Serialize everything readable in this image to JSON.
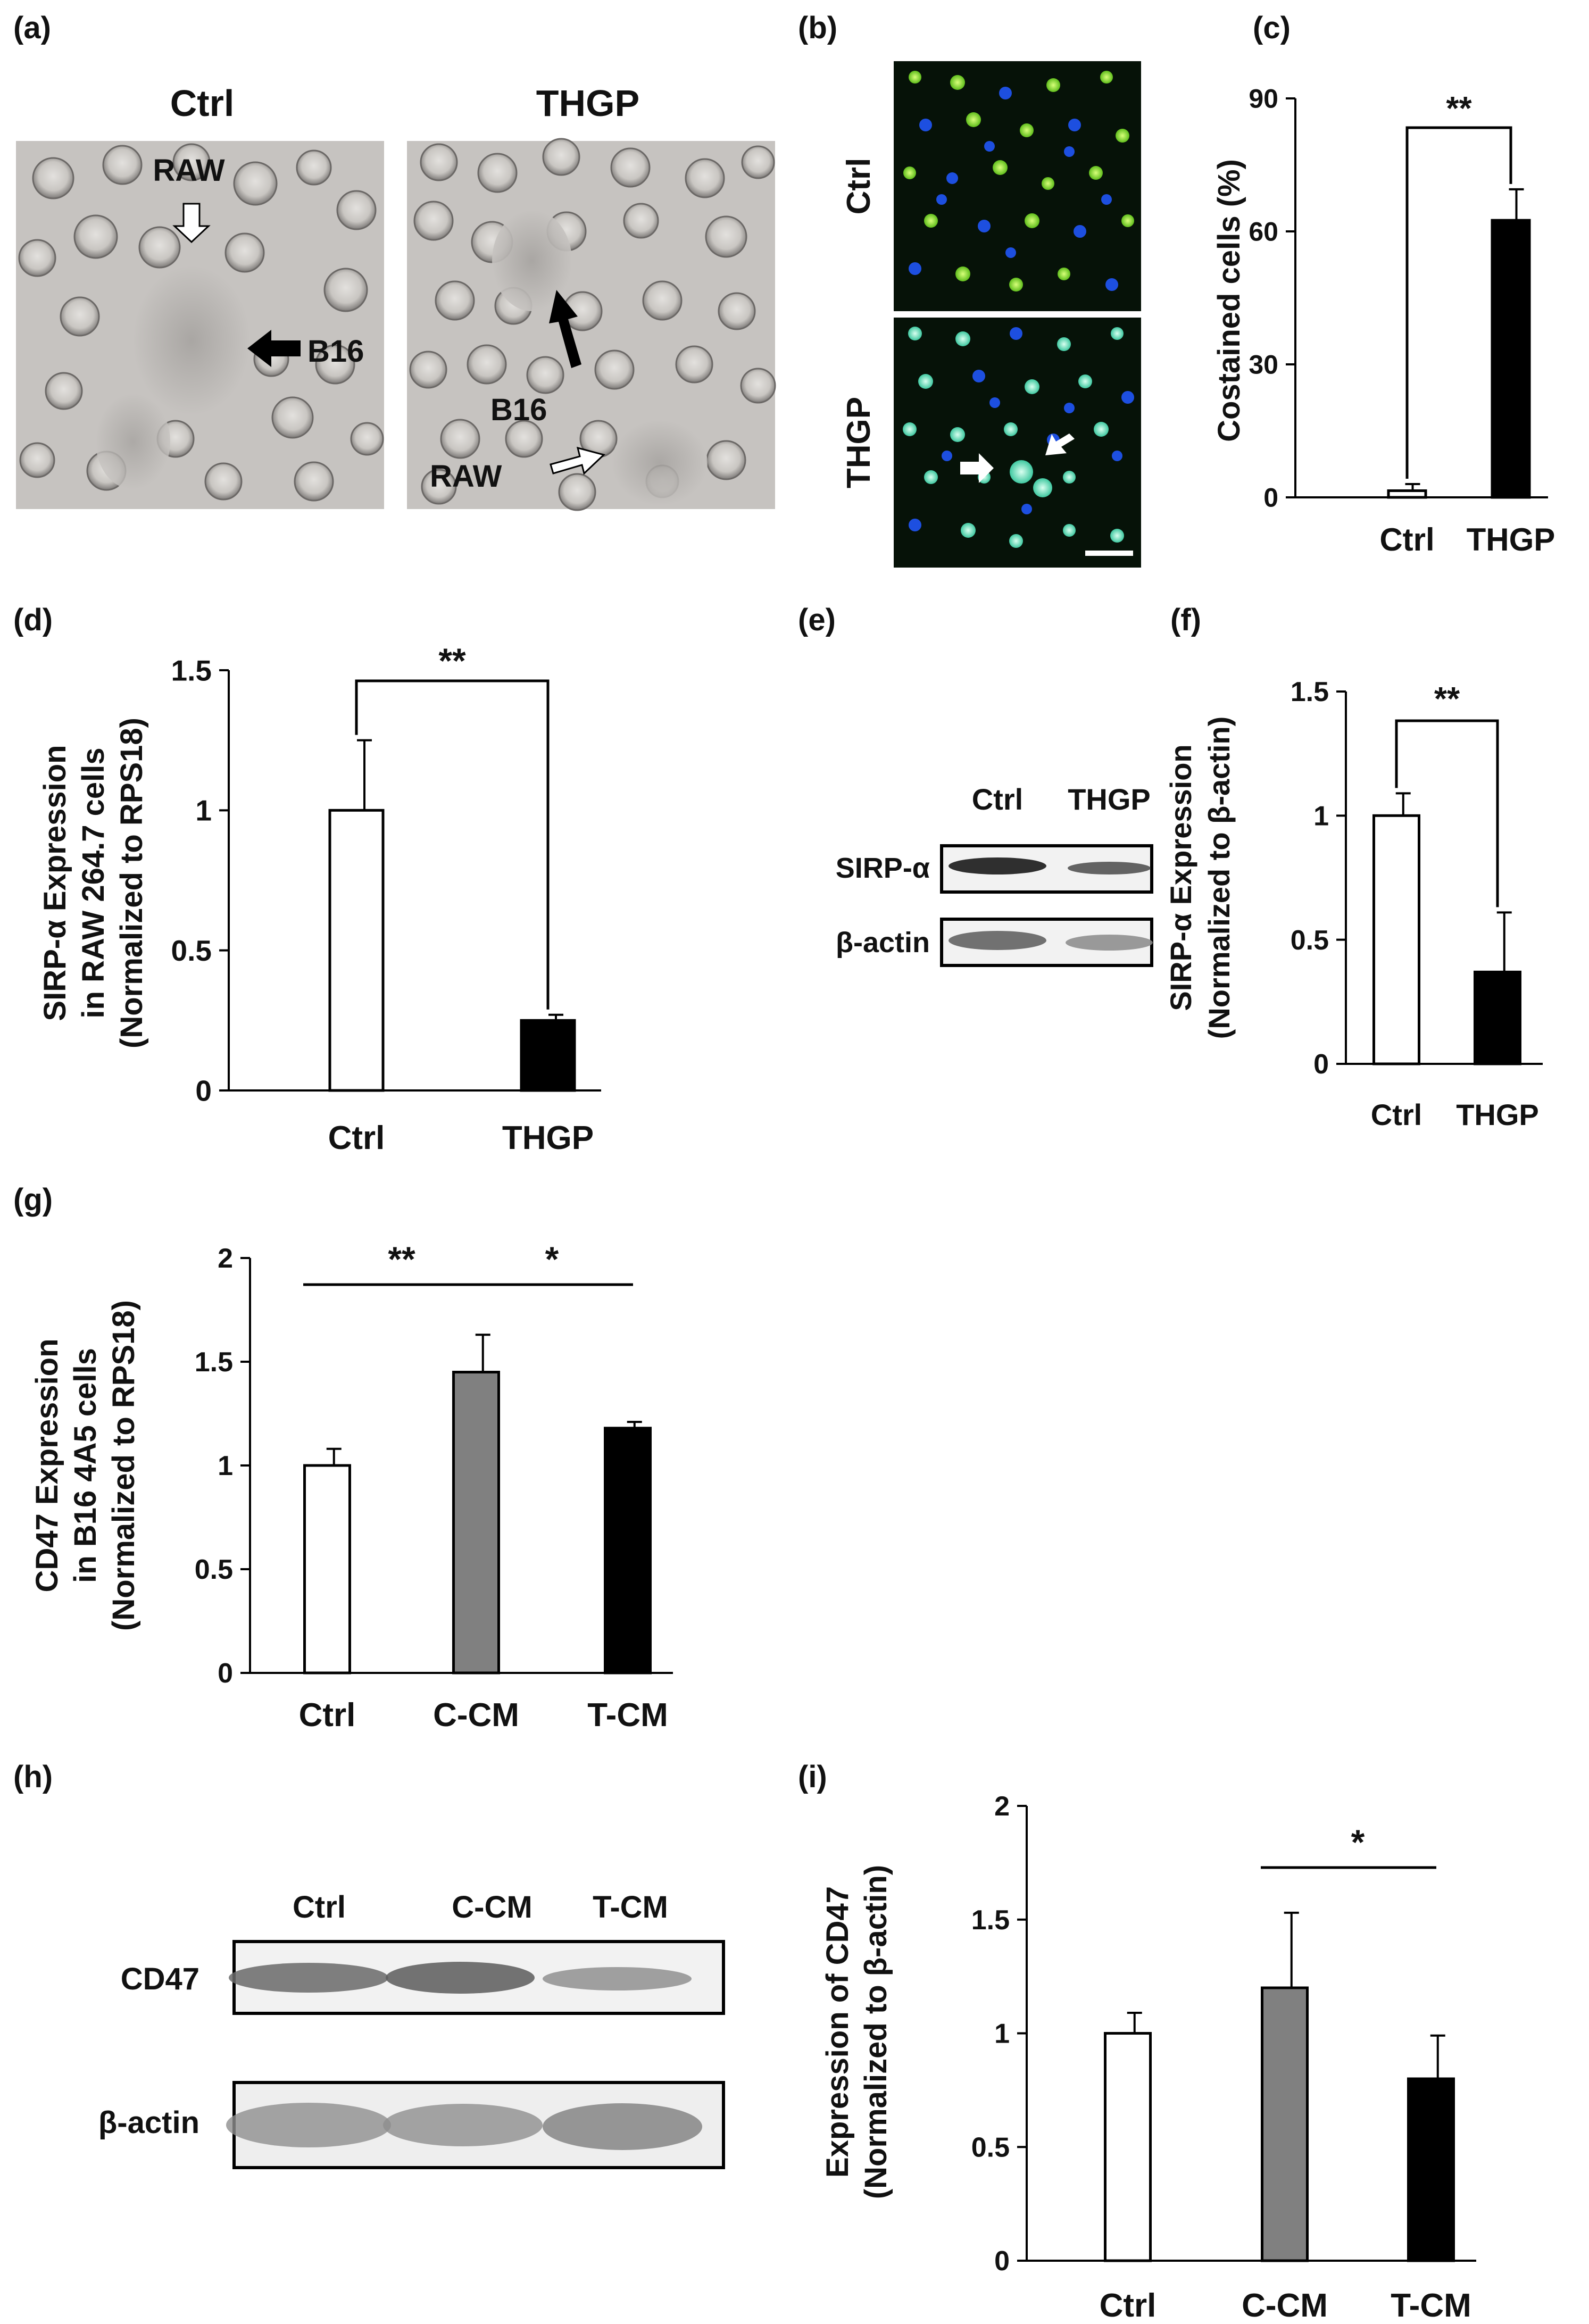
{
  "panels": {
    "a": {
      "letter": "(a)",
      "left_title": "Ctrl",
      "right_title": "THGP",
      "labels": {
        "raw_top": "RAW",
        "b16_left": "B16",
        "b16_right": "B16",
        "raw_bottom": "RAW"
      }
    },
    "b": {
      "letter": "(b)",
      "row_labels": [
        "Ctrl",
        "THGP"
      ]
    },
    "c": {
      "letter": "(c)"
    },
    "d": {
      "letter": "(d)"
    },
    "e": {
      "letter": "(e)",
      "lanes": [
        "Ctrl",
        "THGP"
      ],
      "rows": [
        "SIRP-α",
        "β-actin"
      ]
    },
    "f": {
      "letter": "(f)"
    },
    "g": {
      "letter": "(g)"
    },
    "h": {
      "letter": "(h)",
      "lanes": [
        "Ctrl",
        "C-CM",
        "T-CM"
      ],
      "rows": [
        "CD47",
        "β-actin"
      ]
    },
    "i": {
      "letter": "(i)"
    }
  },
  "colors": {
    "white_bar": "#ffffff",
    "gray_bar": "#808080",
    "black_bar": "#000000"
  },
  "chart_data": [
    {
      "panel": "c",
      "type": "bar",
      "categories": [
        "Ctrl",
        "THGP"
      ],
      "values": [
        1.5,
        62.5
      ],
      "errors": [
        1.5,
        7
      ],
      "bar_colors": [
        "#ffffff",
        "#000000"
      ],
      "ylabel": "Costained cells (%)",
      "ylim": [
        0,
        90
      ],
      "yticks": [
        "0",
        "30",
        "60",
        "90"
      ],
      "significance": [
        {
          "from": 0,
          "to": 1,
          "label": "**"
        }
      ]
    },
    {
      "panel": "d",
      "type": "bar",
      "categories": [
        "Ctrl",
        "THGP"
      ],
      "values": [
        1.0,
        0.25
      ],
      "errors": [
        0.25,
        0.02
      ],
      "bar_colors": [
        "#ffffff",
        "#000000"
      ],
      "ylabel_lines": [
        "SIRP-α Expression",
        "in RAW 264.7 cells",
        "(Normalized to RPS18)"
      ],
      "ylim": [
        0,
        1.5
      ],
      "yticks": [
        "0",
        "0.5",
        "1",
        "1.5"
      ],
      "significance": [
        {
          "from": 0,
          "to": 1,
          "label": "**"
        }
      ]
    },
    {
      "panel": "f",
      "type": "bar",
      "categories": [
        "Ctrl",
        "THGP"
      ],
      "values": [
        1.0,
        0.37
      ],
      "errors": [
        0.09,
        0.24
      ],
      "bar_colors": [
        "#ffffff",
        "#000000"
      ],
      "ylabel_lines": [
        "SIRP-α Expression",
        "(Normalized to β-actin)"
      ],
      "ylim": [
        0,
        1.5
      ],
      "yticks": [
        "0",
        "0.5",
        "1",
        "1.5"
      ],
      "significance": [
        {
          "from": 0,
          "to": 1,
          "label": "**"
        }
      ]
    },
    {
      "panel": "g",
      "type": "bar",
      "categories": [
        "Ctrl",
        "C-CM",
        "T-CM"
      ],
      "values": [
        1.0,
        1.45,
        1.18
      ],
      "errors": [
        0.08,
        0.18,
        0.03
      ],
      "bar_colors": [
        "#ffffff",
        "#808080",
        "#000000"
      ],
      "ylabel_lines": [
        "CD47 Expression",
        "in B16 4A5 cells",
        "(Normalized to RPS18)"
      ],
      "ylim": [
        0,
        2
      ],
      "yticks": [
        "0",
        "0.5",
        "1",
        "1.5",
        "2"
      ],
      "significance": [
        {
          "from": 0,
          "to": 1,
          "label": "**"
        },
        {
          "from": 1,
          "to": 2,
          "label": "*"
        }
      ]
    },
    {
      "panel": "i",
      "type": "bar",
      "categories": [
        "Ctrl",
        "C-CM",
        "T-CM"
      ],
      "values": [
        1.0,
        1.2,
        0.8
      ],
      "errors": [
        0.09,
        0.33,
        0.19
      ],
      "bar_colors": [
        "#ffffff",
        "#808080",
        "#000000"
      ],
      "ylabel_lines": [
        "Expression of CD47",
        "(Normalized to β-actin)"
      ],
      "ylim": [
        0,
        2
      ],
      "yticks": [
        "0",
        "0.5",
        "1",
        "1.5",
        "2"
      ],
      "significance": [
        {
          "from": 1,
          "to": 2,
          "label": "*"
        }
      ]
    }
  ]
}
